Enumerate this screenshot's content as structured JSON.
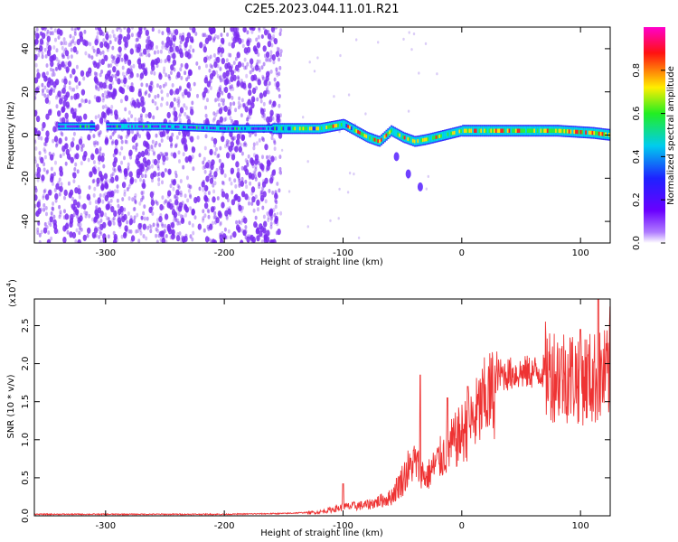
{
  "title": "C2E5.2023.044.11.01.R21",
  "colors": {
    "snr_line": "#ee3333",
    "spectrogram_scatter": "#7a2cf0",
    "colorbar": [
      "#ff00cc",
      "#ff0000",
      "#ffee00",
      "#22ee22",
      "#00dddd",
      "#2222ff",
      "#8800ff",
      "#ffffff"
    ]
  },
  "chart_data": [
    {
      "type": "heatmap",
      "name": "spectrogram",
      "xlabel": "Height of straight line (km)",
      "ylabel": "Frequency (Hz)",
      "xlim": [
        -360,
        125
      ],
      "ylim": [
        -50,
        50
      ],
      "xticks": [
        -300,
        -200,
        -100,
        0,
        100
      ],
      "yticks": [
        -40,
        -20,
        0,
        20,
        40
      ],
      "grid": false,
      "colorbar": {
        "label": "Normalized spectral amplitude",
        "range": [
          0,
          1
        ],
        "ticks": [
          "0.0",
          "0.2",
          "0.4",
          "0.6",
          "0.8"
        ]
      },
      "ridge_frequency": [
        {
          "x": -330,
          "y": 4
        },
        {
          "x": -250,
          "y": 4
        },
        {
          "x": -200,
          "y": 3
        },
        {
          "x": -150,
          "y": 3
        },
        {
          "x": -120,
          "y": 3
        },
        {
          "x": -100,
          "y": 5
        },
        {
          "x": -90,
          "y": 2
        },
        {
          "x": -80,
          "y": -1
        },
        {
          "x": -70,
          "y": -3
        },
        {
          "x": -60,
          "y": 2
        },
        {
          "x": -50,
          "y": -1
        },
        {
          "x": -40,
          "y": -3
        },
        {
          "x": -30,
          "y": -2
        },
        {
          "x": -15,
          "y": 0
        },
        {
          "x": 0,
          "y": 2
        },
        {
          "x": 20,
          "y": 2
        },
        {
          "x": 50,
          "y": 2
        },
        {
          "x": 80,
          "y": 2
        },
        {
          "x": 110,
          "y": 1
        },
        {
          "x": 125,
          "y": 0
        }
      ],
      "secondary_branch": [
        {
          "x": -55,
          "y": -10
        },
        {
          "x": -45,
          "y": -18
        },
        {
          "x": -35,
          "y": -24
        }
      ],
      "noise_regions_km": [
        [
          -360,
          -160
        ]
      ]
    },
    {
      "type": "line",
      "name": "snr",
      "xlabel": "Height of straight line (km)",
      "ylabel": "SNR (10 * v/v)",
      "multiplier_label": "(x10",
      "multiplier_exponent": "4",
      "multiplier_close": ")",
      "xlim": [
        -360,
        125
      ],
      "ylim": [
        0,
        2.85
      ],
      "xticks": [
        -300,
        -200,
        -100,
        0,
        100
      ],
      "yticks": [
        "0.0",
        "0.5",
        "1.0",
        "1.5",
        "2.0",
        "2.5"
      ],
      "grid": false,
      "series": [
        {
          "envelope": [
            {
              "x": -360,
              "y": 0.02
            },
            {
              "x": -200,
              "y": 0.02
            },
            {
              "x": -150,
              "y": 0.03
            },
            {
              "x": -120,
              "y": 0.05
            },
            {
              "x": -100,
              "y": 0.12
            },
            {
              "x": -80,
              "y": 0.15
            },
            {
              "x": -60,
              "y": 0.25
            },
            {
              "x": -50,
              "y": 0.5
            },
            {
              "x": -40,
              "y": 0.8
            },
            {
              "x": -30,
              "y": 0.55
            },
            {
              "x": -20,
              "y": 0.8
            },
            {
              "x": -10,
              "y": 1.0
            },
            {
              "x": 0,
              "y": 1.2
            },
            {
              "x": 10,
              "y": 1.4
            },
            {
              "x": 20,
              "y": 1.7
            },
            {
              "x": 30,
              "y": 1.85
            },
            {
              "x": 50,
              "y": 1.88
            },
            {
              "x": 70,
              "y": 1.9
            },
            {
              "x": 90,
              "y": 1.85
            },
            {
              "x": 110,
              "y": 1.8
            },
            {
              "x": 125,
              "y": 1.85
            }
          ],
          "peaks": [
            {
              "x": -100,
              "y": 0.42
            },
            {
              "x": -35,
              "y": 1.85
            },
            {
              "x": -12,
              "y": 1.55
            },
            {
              "x": 5,
              "y": 1.7
            },
            {
              "x": 100,
              "y": 2.45
            },
            {
              "x": 115,
              "y": 2.85
            },
            {
              "x": 125,
              "y": 2.75
            }
          ]
        }
      ]
    }
  ]
}
